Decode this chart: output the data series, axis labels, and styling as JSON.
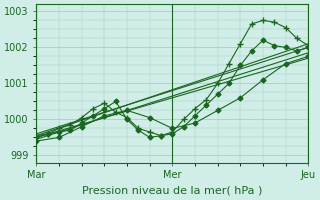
{
  "bg_color": "#d0ede8",
  "grid_color": "#a0c8c0",
  "line_color": "#1a6620",
  "marker_color": "#1a6620",
  "xlabel": "Pression niveau de la mer( hPa )",
  "xtick_labels": [
    "Mar",
    "Mer",
    "Jeu"
  ],
  "xtick_positions": [
    0,
    48,
    96
  ],
  "ylim": [
    998.8,
    1003.2
  ],
  "ytick_vals": [
    999,
    1000,
    1001,
    1002,
    1003
  ],
  "xlim": [
    0,
    96
  ],
  "series": [
    {
      "x": [
        0,
        4,
        8,
        12,
        16,
        20,
        24,
        28,
        32,
        36,
        40,
        44,
        48,
        52,
        56,
        60,
        64,
        68,
        72,
        76,
        80,
        84,
        88,
        92,
        96
      ],
      "y": [
        999.5,
        999.6,
        999.65,
        999.7,
        999.9,
        1000.1,
        1000.3,
        1000.5,
        1000.0,
        999.7,
        999.5,
        999.55,
        999.6,
        999.8,
        1000.1,
        1000.4,
        1000.7,
        1001.0,
        1001.5,
        1001.9,
        1002.2,
        1002.05,
        1002.0,
        1001.9,
        1002.0
      ],
      "marker": "D",
      "ms": 2.5
    },
    {
      "x": [
        0,
        8,
        16,
        24,
        32,
        40,
        48,
        56,
        64,
        72,
        80,
        88,
        96
      ],
      "y": [
        999.4,
        999.5,
        999.8,
        1000.1,
        1000.25,
        1000.05,
        999.75,
        999.9,
        1000.25,
        1000.6,
        1001.1,
        1001.55,
        1001.75
      ],
      "marker": "D",
      "ms": 2.5
    },
    {
      "x": [
        0,
        96
      ],
      "y": [
        999.55,
        1002.1
      ],
      "marker": null,
      "ms": 0
    },
    {
      "x": [
        0,
        96
      ],
      "y": [
        999.45,
        1001.85
      ],
      "marker": null,
      "ms": 0
    },
    {
      "x": [
        0,
        96
      ],
      "y": [
        999.5,
        1001.7
      ],
      "marker": null,
      "ms": 0
    },
    {
      "x": [
        0,
        96
      ],
      "y": [
        999.6,
        1002.0
      ],
      "marker": null,
      "ms": 0
    },
    {
      "x": [
        0,
        4,
        8,
        12,
        16,
        20,
        24,
        28,
        32,
        36,
        40,
        44,
        48,
        52,
        56,
        60,
        64,
        68,
        72,
        76,
        80,
        84,
        88,
        92,
        96
      ],
      "y": [
        999.55,
        999.6,
        999.75,
        999.85,
        1000.05,
        1000.3,
        1000.45,
        1000.2,
        1000.05,
        999.75,
        999.65,
        999.55,
        999.65,
        1000.0,
        1000.3,
        1000.55,
        1001.0,
        1001.55,
        1002.1,
        1002.65,
        1002.75,
        1002.7,
        1002.55,
        1002.25,
        1002.05
      ],
      "marker": "+",
      "ms": 4
    }
  ]
}
